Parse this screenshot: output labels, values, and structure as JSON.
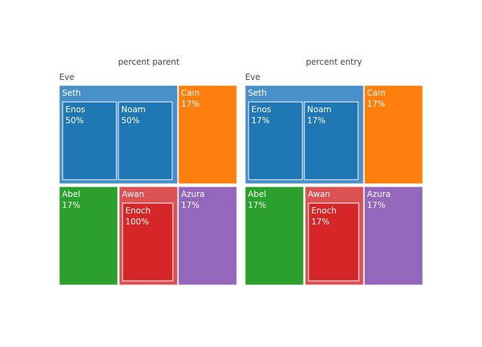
{
  "chart_data": [
    {
      "type": "treemap",
      "title": "percent parent",
      "root_label": "Eve",
      "nodes": [
        {
          "id": "seth",
          "label": "Seth",
          "parent": "Eve",
          "value_text": "",
          "color": "#4a90c8"
        },
        {
          "id": "enos",
          "label": "Enos",
          "parent": "Seth",
          "value_text": "50%",
          "color": "#1f77b4"
        },
        {
          "id": "noam",
          "label": "Noam",
          "parent": "Seth",
          "value_text": "50%",
          "color": "#1f77b4"
        },
        {
          "id": "cain",
          "label": "Cain",
          "parent": "Eve",
          "value_text": "17%",
          "color": "#ff7f0e"
        },
        {
          "id": "abel",
          "label": "Abel",
          "parent": "Eve",
          "value_text": "17%",
          "color": "#2ca02c"
        },
        {
          "id": "awan",
          "label": "Awan",
          "parent": "Eve",
          "value_text": "",
          "color": "#dc5151"
        },
        {
          "id": "enoch",
          "label": "Enoch",
          "parent": "Awan",
          "value_text": "100%",
          "color": "#d62728"
        },
        {
          "id": "azura",
          "label": "Azura",
          "parent": "Eve",
          "value_text": "17%",
          "color": "#9467bd"
        }
      ]
    },
    {
      "type": "treemap",
      "title": "percent entry",
      "root_label": "Eve",
      "nodes": [
        {
          "id": "seth",
          "label": "Seth",
          "parent": "Eve",
          "value_text": "",
          "color": "#4a90c8"
        },
        {
          "id": "enos",
          "label": "Enos",
          "parent": "Seth",
          "value_text": "17%",
          "color": "#1f77b4"
        },
        {
          "id": "noam",
          "label": "Noam",
          "parent": "Seth",
          "value_text": "17%",
          "color": "#1f77b4"
        },
        {
          "id": "cain",
          "label": "Cain",
          "parent": "Eve",
          "value_text": "17%",
          "color": "#ff7f0e"
        },
        {
          "id": "abel",
          "label": "Abel",
          "parent": "Eve",
          "value_text": "17%",
          "color": "#2ca02c"
        },
        {
          "id": "awan",
          "label": "Awan",
          "parent": "Eve",
          "value_text": "",
          "color": "#dc5151"
        },
        {
          "id": "enoch",
          "label": "Enoch",
          "parent": "Awan",
          "value_text": "17%",
          "color": "#d62728"
        },
        {
          "id": "azura",
          "label": "Azura",
          "parent": "Eve",
          "value_text": "17%",
          "color": "#9467bd"
        }
      ]
    }
  ]
}
